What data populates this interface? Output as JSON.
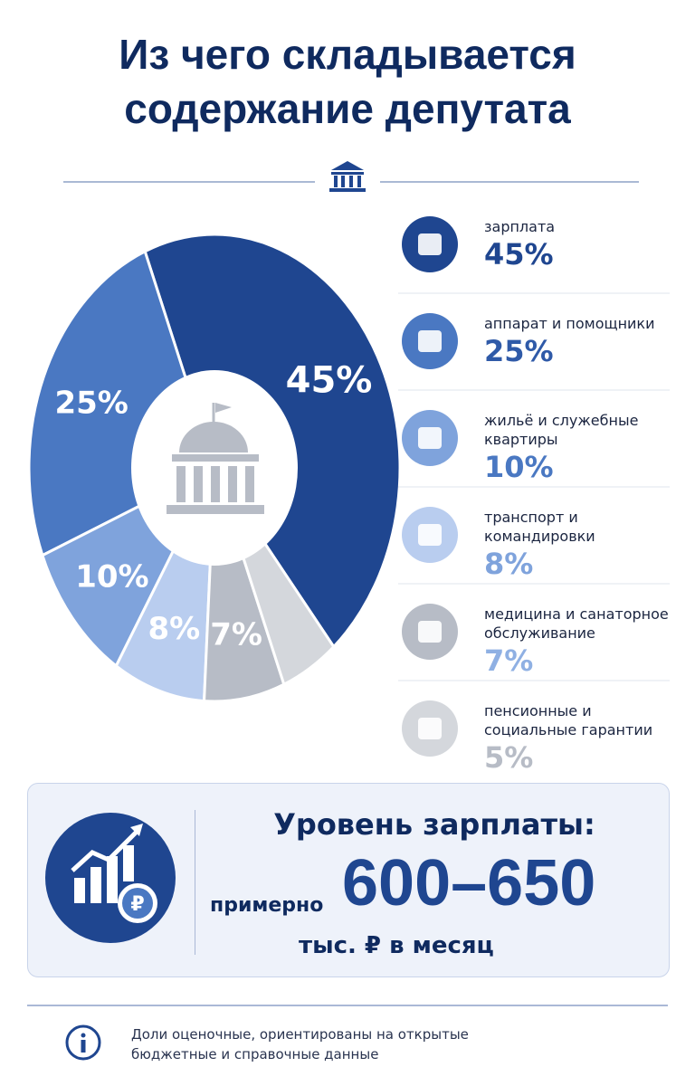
{
  "chart_data": {
    "type": "pie",
    "title": "Из чего складывается содержание депутата",
    "categories": [
      "зарплата",
      "аппарат и помощники",
      "жильё и служебные квартиры",
      "транспорт и командировки",
      "медицина и санаторное обслуживание",
      "пенсионные и социальные гарантии"
    ],
    "values": [
      45,
      25,
      10,
      8,
      7,
      5
    ],
    "value_labels": [
      "45%",
      "25%",
      "10%",
      "8%",
      "7%",
      "5%"
    ],
    "colors": [
      "#1f4690",
      "#4a78c2",
      "#7fa3dc",
      "#b9cdef",
      "#b7bcc6",
      "#d4d7dc"
    ]
  },
  "salary": {
    "heading": "Уровень зарплаты:",
    "prefix": "примерно",
    "amount": "600–650",
    "unit": "тыс. ₽ в месяц"
  },
  "footnote": "Доли оценочные, ориентированы на открытые бюджетные и справочные данные"
}
